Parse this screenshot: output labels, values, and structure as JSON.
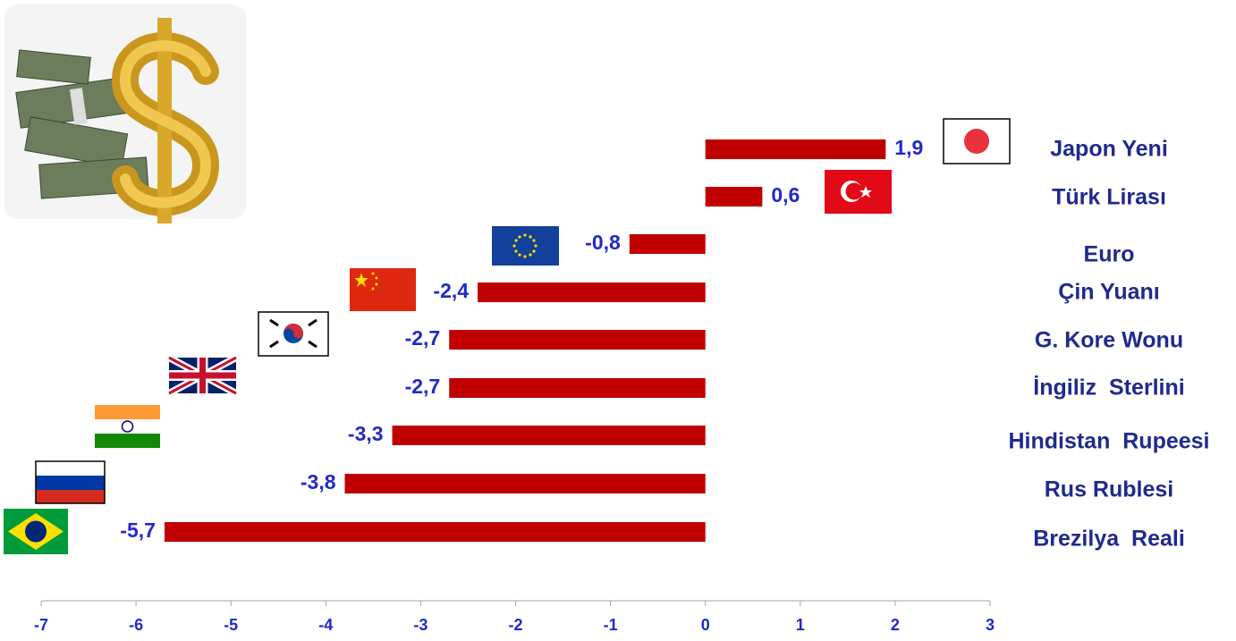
{
  "chart_data": {
    "type": "barh",
    "categories": [
      "Japon Yeni",
      "Türk Lirası",
      "Euro",
      "Çin Yuanı",
      "G. Kore Wonu",
      "İngiliz  Sterlini",
      "Hindistan  Rupeesi",
      "Rus Rublesi",
      "Brezilya  Reali"
    ],
    "values": [
      1.9,
      0.6,
      -0.8,
      -2.4,
      -2.7,
      -2.7,
      -3.3,
      -3.8,
      -5.7
    ],
    "value_labels": [
      "1,9",
      "0,6",
      "-0,8",
      "-2,4",
      "-2,7",
      "-2,7",
      "-3,3",
      "-3,8",
      "-5,7"
    ],
    "color": "#c00000",
    "xlim": [
      -7,
      3
    ],
    "xticks": [
      -7,
      -6,
      -5,
      -4,
      -3,
      -2,
      -1,
      0,
      1,
      2,
      3
    ]
  }
}
